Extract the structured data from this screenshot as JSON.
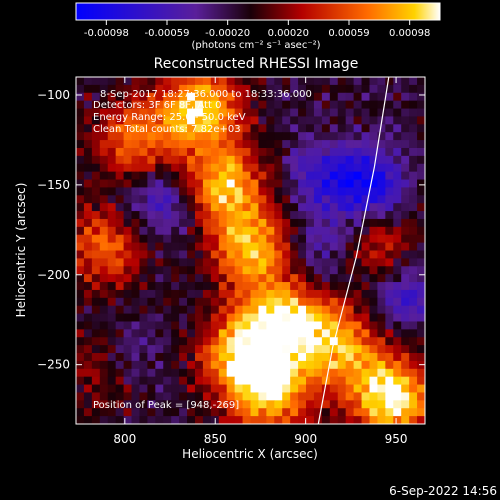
{
  "colorbar": {
    "ticks": [
      "-0.00098",
      "-0.00059",
      "-0.00020",
      "0.00020",
      "0.00059",
      "0.00098"
    ],
    "unit_label": "(photons cm⁻² s⁻¹ asec⁻²)"
  },
  "image_title": "Reconstructed RHESSI Image",
  "info": {
    "time_range": "8-Sep-2017 18:27:36.000 to 18:33:36.000",
    "detectors": "Detectors: 3F 6F 8F, Att 0",
    "energy": "Energy Range: 25.0 - 50.0 keV",
    "clean": "Clean     Total counts: 7.82e+03",
    "peak": "Position of Peak = [948,-269]"
  },
  "footer_date": "6-Sep-2022 14:56",
  "chart_data": {
    "type": "heatmap",
    "title": "Reconstructed RHESSI Image",
    "xlabel": "Heliocentric X (arcsec)",
    "ylabel": "Heliocentric Y (arcsec)",
    "xlim": [
      773,
      966
    ],
    "ylim": [
      -283,
      -90
    ],
    "xticks": [
      800,
      850,
      900,
      950
    ],
    "yticks": [
      -250,
      -200,
      -150,
      -100
    ],
    "colorbar_range": [
      -0.00098,
      0.00098
    ],
    "colors": {
      "negative_low": "#0000ff",
      "zero": "#000000",
      "positive_mid": "#ff3300",
      "positive_high": "#ffffff"
    },
    "sources": [
      {
        "x": 842,
        "y": -108,
        "strength": 0.95
      },
      {
        "x": 855,
        "y": -150,
        "strength": 0.85
      },
      {
        "x": 870,
        "y": -185,
        "strength": 0.8
      },
      {
        "x": 882,
        "y": -225,
        "strength": 0.75
      },
      {
        "x": 880,
        "y": -265,
        "strength": 0.9
      },
      {
        "x": 862,
        "y": -245,
        "strength": 0.7
      },
      {
        "x": 905,
        "y": -230,
        "strength": 0.55
      },
      {
        "x": 948,
        "y": -269,
        "strength": 1.0
      },
      {
        "x": 925,
        "y": -245,
        "strength": 0.55
      },
      {
        "x": 790,
        "y": -185,
        "strength": 0.6
      },
      {
        "x": 805,
        "y": -125,
        "strength": 0.65
      },
      {
        "x": 790,
        "y": -250,
        "strength": 0.45
      },
      {
        "x": 940,
        "y": -185,
        "strength": 0.45
      }
    ],
    "negative_sources": [
      {
        "x": 935,
        "y": -150,
        "strength": 0.7
      },
      {
        "x": 908,
        "y": -145,
        "strength": 0.4
      },
      {
        "x": 820,
        "y": -160,
        "strength": 0.45
      },
      {
        "x": 800,
        "y": -245,
        "strength": 0.4
      },
      {
        "x": 955,
        "y": -210,
        "strength": 0.45
      },
      {
        "x": 910,
        "y": -185,
        "strength": 0.35
      }
    ],
    "limb_curve": [
      [
        946,
        -90
      ],
      [
        938,
        -140
      ],
      [
        928,
        -190
      ],
      [
        915,
        -240
      ],
      [
        907,
        -283
      ]
    ]
  }
}
